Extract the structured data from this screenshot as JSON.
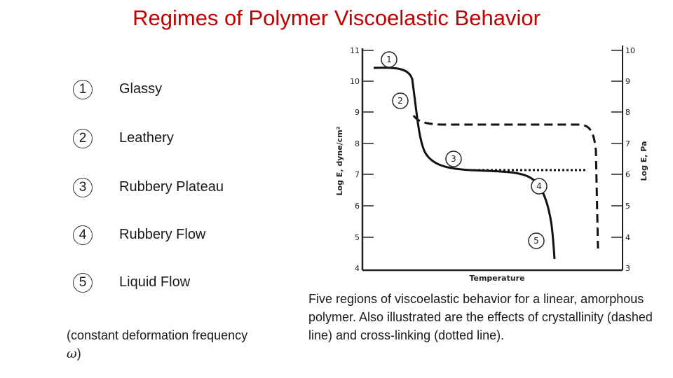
{
  "title": "Regimes of Polymer Viscoelastic Behavior",
  "regimes": [
    {
      "number": "1",
      "label": "Glassy"
    },
    {
      "number": "2",
      "label": "Leathery"
    },
    {
      "number": "3",
      "label": "Rubbery Plateau"
    },
    {
      "number": "4",
      "label": "Rubbery Flow"
    },
    {
      "number": "5",
      "label": "Liquid Flow"
    }
  ],
  "note": {
    "text": "(constant deformation frequency ",
    "symbol": "ω",
    "close": ")"
  },
  "figure": {
    "y_left_label": "Log E, dyne/cm²",
    "y_right_label": "Log E, Pa",
    "x_label": "Temperature",
    "left_ticks": [
      "11",
      "10",
      "9",
      "8",
      "7",
      "6",
      "5",
      "4"
    ],
    "right_ticks": [
      "10",
      "9",
      "8",
      "7",
      "6",
      "5",
      "4",
      "3"
    ],
    "region_markers": [
      "1",
      "2",
      "3",
      "4",
      "5"
    ]
  },
  "caption": "Five regions of viscoelastic behavior for a linear, amorphous polymer.  Also illustrated are the effects of crystallinity (dashed line) and cross-linking (dotted line)."
}
